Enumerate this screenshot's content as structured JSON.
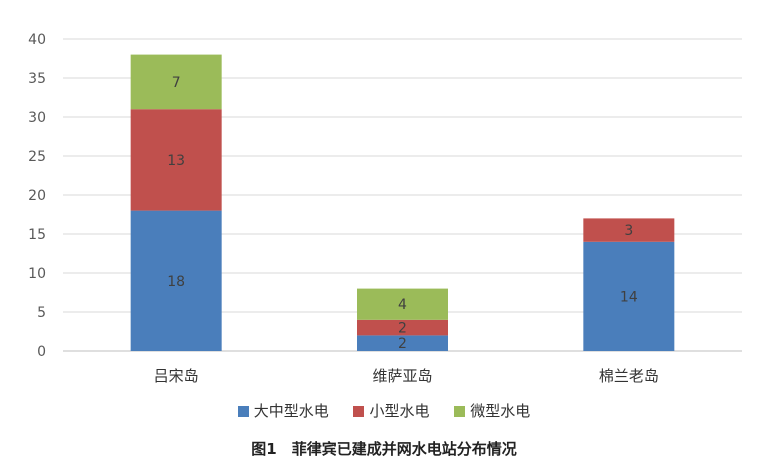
{
  "chart_data": {
    "type": "bar",
    "stacked": true,
    "categories": [
      "吕宋岛",
      "维萨亚岛",
      "棉兰老岛"
    ],
    "series": [
      {
        "name": "大中型水电",
        "color": "#4a7ebb",
        "values": [
          18,
          2,
          14
        ]
      },
      {
        "name": "小型水电",
        "color": "#c0504d",
        "values": [
          13,
          2,
          3
        ]
      },
      {
        "name": "微型水电",
        "color": "#9bbb59",
        "values": [
          7,
          4,
          0
        ]
      }
    ],
    "ylim": [
      0,
      40
    ],
    "yticks": [
      0,
      5,
      10,
      15,
      20,
      25,
      30,
      35,
      40
    ],
    "grid": true,
    "legend_position": "bottom"
  },
  "caption": "图1　菲律宾已建成并网水电站分布情况"
}
